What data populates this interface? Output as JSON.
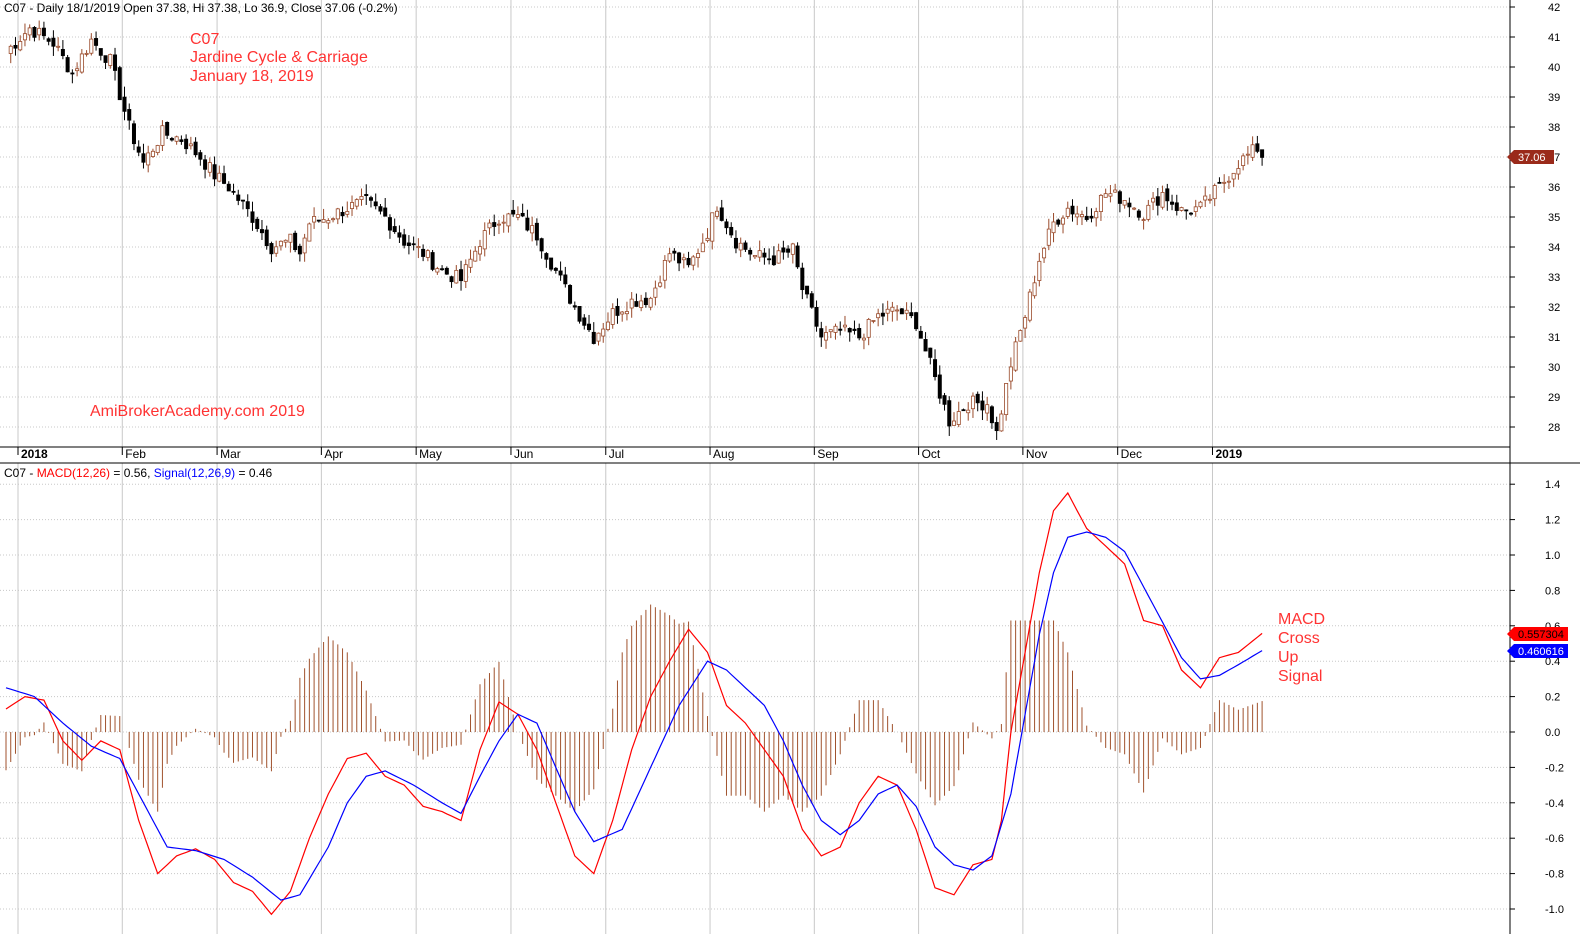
{
  "header": {
    "price_info": "C07 - Daily 18/1/2019 Open 37.38, Hi 37.38, Lo 36.9, Close 37.06 (-0.2%)",
    "macd_prefix": "C07 - ",
    "macd_label": "MACD(12,26)",
    "macd_value_text": " = 0.56, ",
    "signal_label": "Signal(12,26,9)",
    "signal_value_text": " = 0.46"
  },
  "annotations": {
    "symbol": "C07",
    "company": "Jardine Cycle & Carriage",
    "date": "January 18, 2019",
    "watermark": "AmiBrokerAcademy.com  2019",
    "macd_note": [
      "MACD",
      "Cross",
      "Up",
      "Signal"
    ]
  },
  "markers": {
    "last_close": "37.06",
    "macd_last": "0.557304",
    "signal_last": "0.460616"
  },
  "colors": {
    "up_candle": "#9a4a2a",
    "down_candle": "#000000",
    "macd_line": "#ff0000",
    "signal_line": "#0000ff",
    "histogram": "#a0522d",
    "annotation": "#ff3333",
    "grid": "#c8c8c8"
  },
  "chart_data": [
    {
      "type": "candlestick",
      "panel": "price",
      "ylim": [
        27.5,
        42.5
      ],
      "y_ticks": [
        "28",
        "29",
        "30",
        "31",
        "32",
        "33",
        "34",
        "35",
        "36",
        "37",
        "38",
        "39",
        "40",
        "41",
        "42"
      ],
      "x_labels": [
        "2018",
        "Feb",
        "Mar",
        "Apr",
        "May",
        "Jun",
        "Jul",
        "Aug",
        "Sep",
        "Oct",
        "Nov",
        "Dec",
        "2019"
      ],
      "x_label_positions": [
        0,
        22,
        42,
        64,
        84,
        104,
        124,
        146,
        168,
        190,
        212,
        232,
        252
      ],
      "sessions": 266,
      "close_anchors": [
        [
          0,
          40.5
        ],
        [
          5,
          41.3
        ],
        [
          10,
          40.8
        ],
        [
          14,
          39.8
        ],
        [
          18,
          40.9
        ],
        [
          22,
          40.2
        ],
        [
          26,
          38.0
        ],
        [
          29,
          36.8
        ],
        [
          33,
          37.8
        ],
        [
          37,
          37.6
        ],
        [
          41,
          37.0
        ],
        [
          44,
          36.4
        ],
        [
          47,
          36.0
        ],
        [
          52,
          35.0
        ],
        [
          56,
          34.0
        ],
        [
          60,
          34.2
        ],
        [
          62,
          33.8
        ],
        [
          64,
          34.8
        ],
        [
          68,
          35.0
        ],
        [
          72,
          35.3
        ],
        [
          76,
          35.5
        ],
        [
          80,
          35.0
        ],
        [
          84,
          34.2
        ],
        [
          88,
          33.8
        ],
        [
          92,
          33.2
        ],
        [
          96,
          32.9
        ],
        [
          100,
          34.2
        ],
        [
          104,
          35.0
        ],
        [
          108,
          35.0
        ],
        [
          112,
          34.4
        ],
        [
          116,
          33.2
        ],
        [
          120,
          32.0
        ],
        [
          124,
          31.0
        ],
        [
          128,
          31.8
        ],
        [
          132,
          32.2
        ],
        [
          136,
          32.3
        ],
        [
          140,
          33.8
        ],
        [
          144,
          33.3
        ],
        [
          148,
          34.5
        ],
        [
          150,
          35.4
        ],
        [
          154,
          34.2
        ],
        [
          158,
          33.7
        ],
        [
          162,
          33.6
        ],
        [
          166,
          33.9
        ],
        [
          168,
          32.6
        ],
        [
          172,
          31.0
        ],
        [
          176,
          31.2
        ],
        [
          180,
          31.0
        ],
        [
          184,
          31.7
        ],
        [
          188,
          31.9
        ],
        [
          192,
          31.5
        ],
        [
          196,
          29.6
        ],
        [
          199,
          28.2
        ],
        [
          203,
          28.8
        ],
        [
          207,
          28.8
        ],
        [
          209,
          27.8
        ],
        [
          212,
          30.1
        ],
        [
          215,
          31.7
        ],
        [
          218,
          33.6
        ],
        [
          221,
          34.8
        ],
        [
          224,
          35.3
        ],
        [
          228,
          35.0
        ],
        [
          232,
          35.8
        ],
        [
          236,
          35.6
        ],
        [
          240,
          35.1
        ],
        [
          244,
          35.8
        ],
        [
          248,
          35.2
        ],
        [
          252,
          35.3
        ],
        [
          256,
          36.0
        ],
        [
          260,
          36.8
        ],
        [
          264,
          37.3
        ],
        [
          265,
          37.06
        ]
      ]
    },
    {
      "type": "line",
      "panel": "macd",
      "ylim": [
        -1.05,
        1.5
      ],
      "y_ticks": [
        "-1.0",
        "-0.8",
        "-0.6",
        "-0.4",
        "-0.2",
        "0.0",
        "0.2",
        "0.4",
        "0.6",
        "0.8",
        "1.0",
        "1.2",
        "1.4"
      ],
      "series": [
        {
          "name": "MACD(12,26)",
          "points": [
            [
              0,
              0.13
            ],
            [
              4,
              0.2
            ],
            [
              8,
              0.18
            ],
            [
              12,
              -0.05
            ],
            [
              16,
              -0.16
            ],
            [
              20,
              -0.05
            ],
            [
              24,
              -0.1
            ],
            [
              28,
              -0.5
            ],
            [
              32,
              -0.8
            ],
            [
              36,
              -0.7
            ],
            [
              40,
              -0.66
            ],
            [
              44,
              -0.72
            ],
            [
              48,
              -0.85
            ],
            [
              52,
              -0.9
            ],
            [
              56,
              -1.03
            ],
            [
              60,
              -0.9
            ],
            [
              64,
              -0.6
            ],
            [
              68,
              -0.35
            ],
            [
              72,
              -0.15
            ],
            [
              76,
              -0.12
            ],
            [
              80,
              -0.25
            ],
            [
              84,
              -0.3
            ],
            [
              88,
              -0.42
            ],
            [
              92,
              -0.45
            ],
            [
              96,
              -0.5
            ],
            [
              100,
              -0.1
            ],
            [
              104,
              0.17
            ],
            [
              108,
              0.1
            ],
            [
              112,
              -0.1
            ],
            [
              116,
              -0.4
            ],
            [
              120,
              -0.7
            ],
            [
              124,
              -0.8
            ],
            [
              128,
              -0.5
            ],
            [
              132,
              -0.1
            ],
            [
              136,
              0.2
            ],
            [
              140,
              0.4
            ],
            [
              144,
              0.58
            ],
            [
              148,
              0.45
            ],
            [
              152,
              0.15
            ],
            [
              156,
              0.05
            ],
            [
              160,
              -0.1
            ],
            [
              164,
              -0.25
            ],
            [
              168,
              -0.55
            ],
            [
              172,
              -0.7
            ],
            [
              176,
              -0.65
            ],
            [
              180,
              -0.4
            ],
            [
              184,
              -0.25
            ],
            [
              188,
              -0.3
            ],
            [
              192,
              -0.55
            ],
            [
              196,
              -0.88
            ],
            [
              200,
              -0.92
            ],
            [
              204,
              -0.75
            ],
            [
              208,
              -0.72
            ],
            [
              210,
              -0.5
            ],
            [
              212,
              0.0
            ],
            [
              215,
              0.45
            ],
            [
              218,
              0.9
            ],
            [
              221,
              1.25
            ],
            [
              224,
              1.35
            ],
            [
              228,
              1.15
            ],
            [
              232,
              1.05
            ],
            [
              236,
              0.95
            ],
            [
              240,
              0.63
            ],
            [
              244,
              0.6
            ],
            [
              248,
              0.35
            ],
            [
              252,
              0.25
            ],
            [
              256,
              0.42
            ],
            [
              260,
              0.45
            ],
            [
              265,
              0.557
            ]
          ]
        },
        {
          "name": "Signal(12,26,9)",
          "points": [
            [
              0,
              0.25
            ],
            [
              6,
              0.2
            ],
            [
              12,
              0.05
            ],
            [
              18,
              -0.08
            ],
            [
              24,
              -0.15
            ],
            [
              30,
              -0.45
            ],
            [
              34,
              -0.65
            ],
            [
              40,
              -0.67
            ],
            [
              46,
              -0.72
            ],
            [
              52,
              -0.82
            ],
            [
              58,
              -0.95
            ],
            [
              62,
              -0.92
            ],
            [
              68,
              -0.65
            ],
            [
              72,
              -0.4
            ],
            [
              76,
              -0.25
            ],
            [
              80,
              -0.22
            ],
            [
              86,
              -0.3
            ],
            [
              92,
              -0.4
            ],
            [
              96,
              -0.46
            ],
            [
              100,
              -0.25
            ],
            [
              104,
              -0.05
            ],
            [
              108,
              0.1
            ],
            [
              112,
              0.05
            ],
            [
              116,
              -0.2
            ],
            [
              120,
              -0.45
            ],
            [
              124,
              -0.62
            ],
            [
              130,
              -0.55
            ],
            [
              136,
              -0.2
            ],
            [
              142,
              0.15
            ],
            [
              148,
              0.4
            ],
            [
              152,
              0.35
            ],
            [
              156,
              0.25
            ],
            [
              160,
              0.15
            ],
            [
              164,
              -0.05
            ],
            [
              168,
              -0.3
            ],
            [
              172,
              -0.5
            ],
            [
              176,
              -0.58
            ],
            [
              180,
              -0.5
            ],
            [
              184,
              -0.35
            ],
            [
              188,
              -0.3
            ],
            [
              192,
              -0.42
            ],
            [
              196,
              -0.65
            ],
            [
              200,
              -0.75
            ],
            [
              204,
              -0.78
            ],
            [
              208,
              -0.7
            ],
            [
              212,
              -0.35
            ],
            [
              215,
              0.1
            ],
            [
              218,
              0.55
            ],
            [
              221,
              0.9
            ],
            [
              224,
              1.1
            ],
            [
              228,
              1.13
            ],
            [
              232,
              1.1
            ],
            [
              236,
              1.02
            ],
            [
              240,
              0.82
            ],
            [
              244,
              0.62
            ],
            [
              248,
              0.42
            ],
            [
              252,
              0.3
            ],
            [
              256,
              0.32
            ],
            [
              260,
              0.38
            ],
            [
              265,
              0.46
            ]
          ]
        }
      ]
    }
  ]
}
